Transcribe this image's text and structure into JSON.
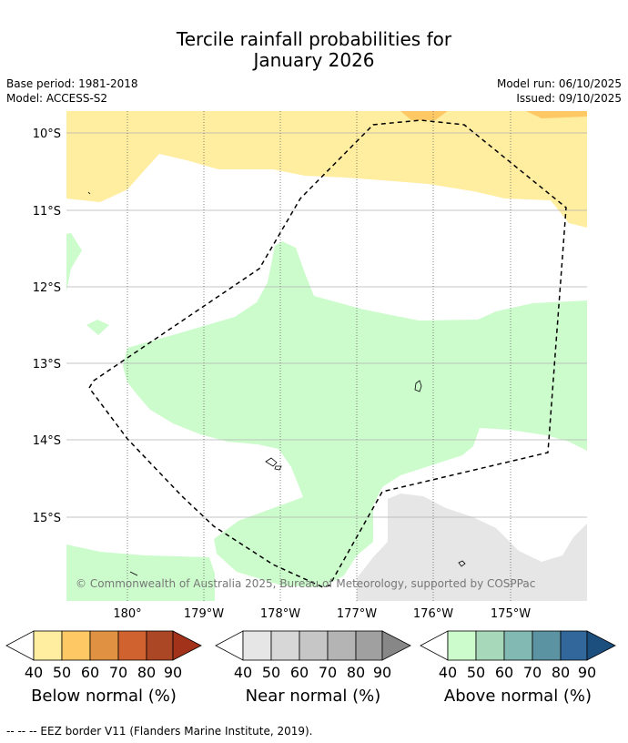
{
  "title_line1": "Tercile rainfall probabilities for",
  "title_line2": "January 2026",
  "base_period": "Base period: 1981-2018",
  "model": "Model: ACCESS-S2",
  "model_run": "Model run: 06/10/2025",
  "issued": "Issued: 09/10/2025",
  "map": {
    "lat_labels": [
      "10°S",
      "11°S",
      "12°S",
      "13°S",
      "14°S",
      "15°S"
    ],
    "lon_labels": [
      "180°",
      "179°W",
      "178°W",
      "177°W",
      "176°W",
      "175°W"
    ],
    "copyright": "© Commonwealth of Australia 2025, Bureau of Meteorology, supported by COSPPac",
    "colors": {
      "below_low": "#ffeda0",
      "below_mid": "#fec965",
      "near_low": "#e6e6e6",
      "above_low": "#ccfccc",
      "land_outline": "#000000",
      "gridline": "#b0b0b0"
    }
  },
  "colorbars": [
    {
      "title": "Below normal (%)",
      "ticks": [
        "40",
        "50",
        "60",
        "70",
        "80",
        "90"
      ],
      "colors": [
        "#ffeda0",
        "#fec965",
        "#e09242",
        "#d0622f",
        "#ac4726",
        "#a3321b"
      ]
    },
    {
      "title": "Near normal (%)",
      "ticks": [
        "40",
        "50",
        "60",
        "70",
        "80",
        "90"
      ],
      "colors": [
        "#e6e6e6",
        "#d7d7d7",
        "#c6c6c6",
        "#b4b4b4",
        "#a0a0a0",
        "#878787"
      ]
    },
    {
      "title": "Above normal (%)",
      "ticks": [
        "40",
        "50",
        "60",
        "70",
        "80",
        "90"
      ],
      "colors": [
        "#ccfccc",
        "#a7d8b9",
        "#82b9b2",
        "#5b93a2",
        "#31679b",
        "#1c4f7e"
      ]
    }
  ],
  "footnote": "--  --  -- EEZ border V11 (Flanders Marine Institute, 2019)."
}
